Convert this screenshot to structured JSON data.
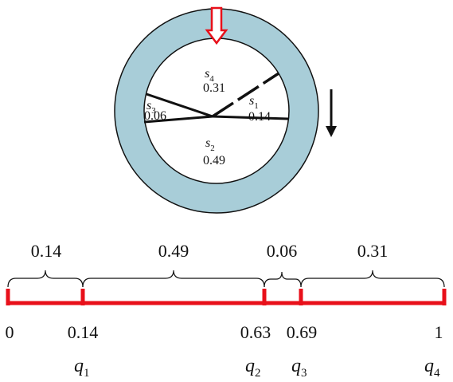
{
  "wheel": {
    "segments": [
      {
        "id": "s4",
        "symbol": "s",
        "sub": "4",
        "value": "0.31"
      },
      {
        "id": "s1",
        "symbol": "s",
        "sub": "1",
        "value": "0.14"
      },
      {
        "id": "s3",
        "symbol": "s",
        "sub": "3",
        "value": "0.06"
      },
      {
        "id": "s2",
        "symbol": "s",
        "sub": "2",
        "value": "0.49"
      }
    ],
    "ring_color": "#a8cdd8",
    "pointer_color": "#e8101a"
  },
  "number_line": {
    "line_color": "#e8101a",
    "intervals": [
      "0.14",
      "0.49",
      "0.06",
      "0.31"
    ],
    "ticks": [
      "0",
      "0.14",
      "0.63",
      "0.69",
      "1"
    ],
    "quantiles": [
      {
        "symbol": "q",
        "sub": "1"
      },
      {
        "symbol": "q",
        "sub": "2"
      },
      {
        "symbol": "q",
        "sub": "3"
      },
      {
        "symbol": "q",
        "sub": "4"
      }
    ]
  }
}
